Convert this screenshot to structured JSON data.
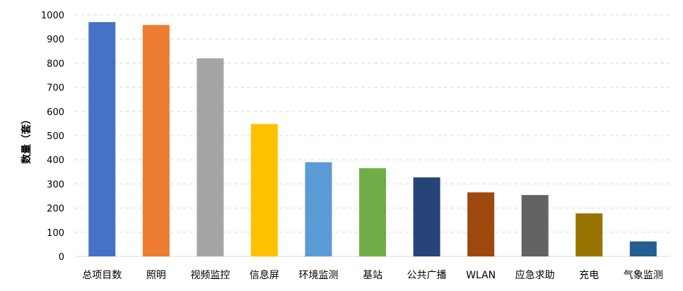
{
  "chart_data": {
    "type": "bar",
    "title": "",
    "xlabel": "",
    "ylabel": "数量（套）",
    "ylim": [
      0,
      1000
    ],
    "yticks": [
      0,
      100,
      200,
      300,
      400,
      500,
      600,
      700,
      800,
      900,
      1000
    ],
    "grid": true,
    "legend": "none",
    "categories": [
      "总项目数",
      "照明",
      "视频监控",
      "信息屏",
      "环境监测",
      "基站",
      "公共广播",
      "WLAN",
      "应急求助",
      "充电",
      "气象监测"
    ],
    "values": [
      970,
      958,
      820,
      548,
      390,
      365,
      327,
      265,
      254,
      178,
      62
    ],
    "colors": [
      "#4472C4",
      "#ED7D31",
      "#A5A5A5",
      "#FFC000",
      "#5B9BD5",
      "#70AD47",
      "#264478",
      "#9E480E",
      "#636363",
      "#997300",
      "#255E91"
    ]
  }
}
